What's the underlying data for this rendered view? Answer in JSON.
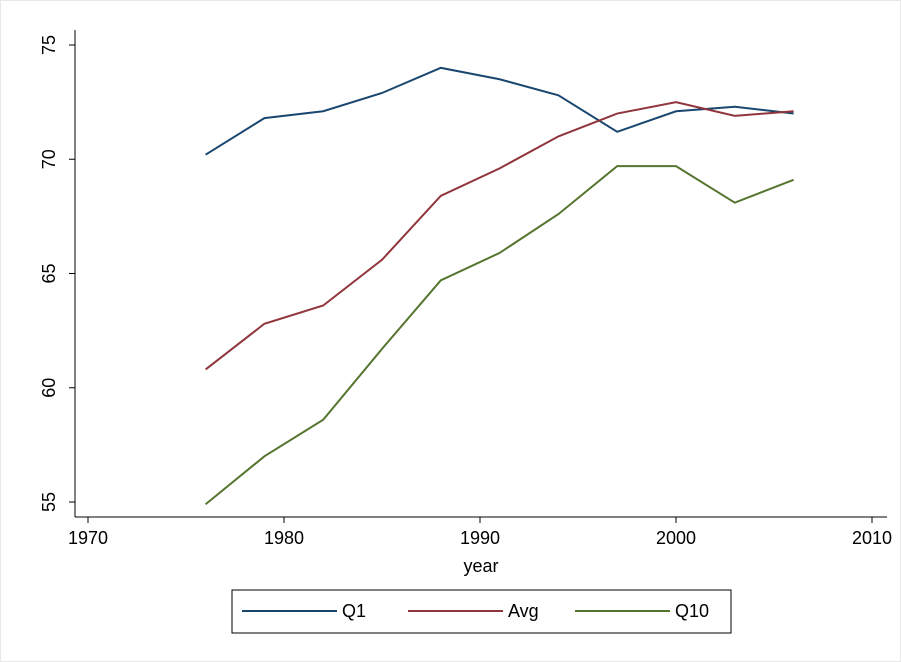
{
  "chart_data": {
    "type": "line",
    "x_label": "year",
    "x": [
      1976,
      1979,
      1982,
      1985,
      1988,
      1991,
      1994,
      1997,
      2000,
      2003,
      2006
    ],
    "series": [
      {
        "name": "Q1",
        "color": "#1a476f",
        "values": [
          70.2,
          71.8,
          72.1,
          72.9,
          74.0,
          73.5,
          72.8,
          71.2,
          72.1,
          72.3,
          72.0
        ]
      },
      {
        "name": "Avg",
        "color": "#90353b",
        "values": [
          60.8,
          62.8,
          63.6,
          65.6,
          68.4,
          69.6,
          71.0,
          72.0,
          72.5,
          71.9,
          72.1
        ]
      },
      {
        "name": "Q10",
        "color": "#55752f",
        "values": [
          54.9,
          57.0,
          58.6,
          61.7,
          64.7,
          65.9,
          67.6,
          69.7,
          69.7,
          68.1,
          69.1
        ]
      }
    ],
    "xlim": [
      1970,
      2010
    ],
    "xticks": [
      1970,
      1980,
      1990,
      2000,
      2010
    ],
    "ylim": [
      55,
      75
    ],
    "yticks": [
      55,
      60,
      65,
      70,
      75
    ],
    "grid": false,
    "legend": "bottom"
  }
}
